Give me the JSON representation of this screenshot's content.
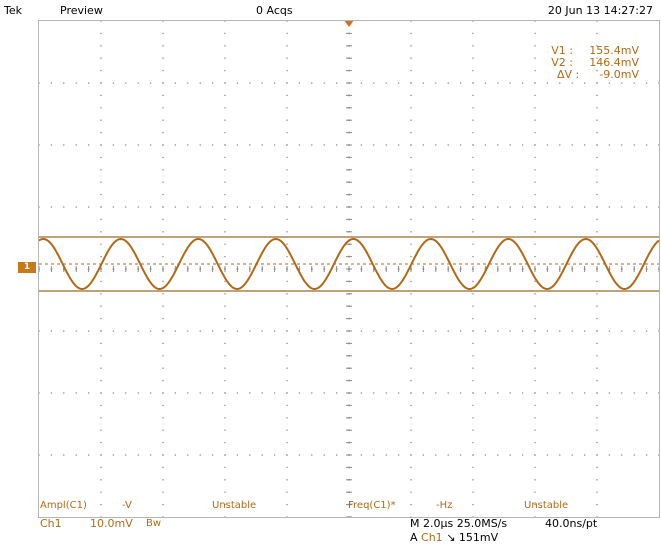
{
  "header": {
    "brand": "Tek",
    "mode": "Preview",
    "acquisitions": "0 Acqs",
    "datetime": "20 Jun 13 14:27:27"
  },
  "cursors": {
    "v1_label": "V1 :",
    "v1_value": "155.4mV",
    "v2_label": "V2 :",
    "v2_value": "146.4mV",
    "dv_label": "ΔV :",
    "dv_value": "-9.0mV"
  },
  "channel_marker": "1",
  "measurements": {
    "ampl_label": "Ampl(C1)",
    "ampl_value": "-V",
    "ampl_status": "Unstable",
    "freq_label": "Freq(C1)*",
    "freq_value": "-Hz",
    "freq_status": "Unstable"
  },
  "status_bar": {
    "channel": "Ch1",
    "vertical_scale": "10.0mV",
    "bandwidth_symbol": "Bw",
    "horizontal": "M 2.0µs 25.0MS/s",
    "resolution": "40.0ns/pt",
    "trigger_prefix": "A",
    "trigger_channel": "Ch1",
    "trigger_slope": "↘",
    "trigger_level": "151mV"
  },
  "colors": {
    "trace": "#b06a16",
    "cursor_line": "#9a6a2a",
    "grid": "#8a8a8a",
    "trigger_marker": "#e06a10"
  },
  "waveform": {
    "cycles_on_screen": 8,
    "cursor_high_mV": 155.4,
    "cursor_low_mV": 146.4
  }
}
